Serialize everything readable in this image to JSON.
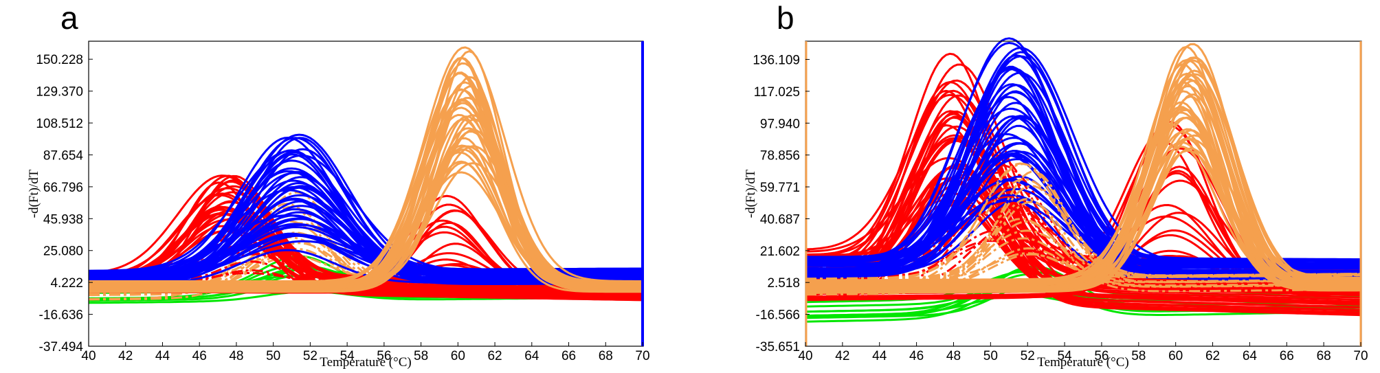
{
  "chart_data": [
    {
      "panel": "a",
      "type": "line",
      "xlabel": "Temperature (°C)",
      "ylabel": "-d(Ft)/dT",
      "xlim": [
        40,
        70
      ],
      "ylim": [
        -37.494,
        162
      ],
      "xticks": [
        40,
        42,
        44,
        46,
        48,
        50,
        52,
        54,
        56,
        58,
        60,
        62,
        64,
        66,
        68,
        70
      ],
      "yticks": [
        -37.494,
        -16.636,
        4.222,
        25.08,
        45.938,
        66.796,
        87.654,
        108.512,
        129.37,
        150.228
      ],
      "ytick_labels": [
        "-37.494",
        "-16.636",
        "4.222",
        "25.080",
        "45.938",
        "66.796",
        "87.654",
        "108.512",
        "129.370",
        "150.228"
      ],
      "frame_color": "#0000ff",
      "series": [
        {
          "name": "green",
          "color": "#00e600",
          "center": 51.5,
          "sigma": 2.2,
          "amp_range": [
            6,
            22
          ],
          "base_range": [
            -12,
            0
          ],
          "slope": 0.12,
          "count": 9,
          "dashed": false
        },
        {
          "name": "orange-low",
          "color": "#f5a04e",
          "center": 51.0,
          "sigma": 2.2,
          "amp_range": [
            18,
            62
          ],
          "base_range": [
            -9,
            4
          ],
          "slope": 0.1,
          "count": 12,
          "dashed": true
        },
        {
          "name": "red",
          "color": "#ff0000",
          "center": 47.5,
          "sigma": 2.2,
          "amp_range": [
            35,
            72
          ],
          "base_range": [
            -2,
            11
          ],
          "slope": -0.2,
          "count": 26,
          "dashed": false
        },
        {
          "name": "red-dashed",
          "color": "#ff0000",
          "center": 48.8,
          "sigma": 2.0,
          "amp_range": [
            8,
            40
          ],
          "base_range": [
            0,
            10
          ],
          "slope": -0.15,
          "count": 10,
          "dashed": true
        },
        {
          "name": "red-high",
          "color": "#ff0000",
          "center": 59.5,
          "sigma": 2.0,
          "amp_range": [
            10,
            62
          ],
          "base_range": [
            -2,
            4
          ],
          "slope": -0.05,
          "count": 14,
          "dashed": false
        },
        {
          "name": "blue",
          "color": "#0000ff",
          "center": 51.2,
          "sigma": 2.7,
          "amp_range": [
            20,
            92
          ],
          "base_range": [
            2,
            12
          ],
          "slope": 0.05,
          "count": 42,
          "dashed": false
        },
        {
          "name": "orange-high",
          "color": "#f5a04e",
          "center": 60.5,
          "sigma": 2.0,
          "amp_range": [
            78,
            153
          ],
          "base_range": [
            -2,
            5
          ],
          "slope": 0.0,
          "count": 36,
          "dashed": false
        }
      ]
    },
    {
      "panel": "b",
      "type": "line",
      "xlabel": "Temperature (°C)",
      "ylabel": "-d(Ft)/dT",
      "xlim": [
        40,
        70
      ],
      "ylim": [
        -35.651,
        147
      ],
      "xticks": [
        40,
        42,
        44,
        46,
        48,
        50,
        52,
        54,
        56,
        58,
        60,
        62,
        64,
        66,
        68,
        70
      ],
      "yticks": [
        -35.651,
        -16.566,
        2.518,
        21.602,
        40.687,
        59.771,
        78.856,
        97.94,
        117.025,
        136.109
      ],
      "ytick_labels": [
        "-35.651",
        "-16.566",
        "2.518",
        "21.602",
        "40.687",
        "59.771",
        "78.856",
        "97.940",
        "117.025",
        "136.109"
      ],
      "frame_color": "#f5a04e",
      "series": [
        {
          "name": "green",
          "color": "#00e600",
          "center": 52.0,
          "sigma": 2.2,
          "amp_range": [
            10,
            28
          ],
          "base_range": [
            -22,
            -3
          ],
          "slope": 0.2,
          "count": 10,
          "dashed": false
        },
        {
          "name": "red",
          "color": "#ff0000",
          "center": 48.0,
          "sigma": 2.3,
          "amp_range": [
            45,
            125
          ],
          "base_range": [
            -8,
            22
          ],
          "slope": -0.3,
          "count": 36,
          "dashed": false
        },
        {
          "name": "red-dashed",
          "color": "#ff0000",
          "center": 50.5,
          "sigma": 2.2,
          "amp_range": [
            20,
            75
          ],
          "base_range": [
            0,
            12
          ],
          "slope": -0.1,
          "count": 12,
          "dashed": true
        },
        {
          "name": "red-high",
          "color": "#ff0000",
          "center": 59.8,
          "sigma": 2.2,
          "amp_range": [
            15,
            100
          ],
          "base_range": [
            -8,
            2
          ],
          "slope": 0.1,
          "count": 16,
          "dashed": false
        },
        {
          "name": "blue",
          "color": "#0000ff",
          "center": 51.3,
          "sigma": 2.6,
          "amp_range": [
            40,
            138
          ],
          "base_range": [
            5,
            18
          ],
          "slope": -0.05,
          "count": 42,
          "dashed": false
        },
        {
          "name": "orange-low",
          "color": "#f5a04e",
          "center": 52.0,
          "sigma": 2.0,
          "amp_range": [
            15,
            72
          ],
          "base_range": [
            -5,
            5
          ],
          "slope": 0.1,
          "count": 14,
          "dashed": true
        },
        {
          "name": "orange-high",
          "color": "#f5a04e",
          "center": 60.7,
          "sigma": 2.1,
          "amp_range": [
            80,
            143
          ],
          "base_range": [
            -4,
            4
          ],
          "slope": 0.05,
          "count": 36,
          "dashed": false
        }
      ]
    }
  ]
}
